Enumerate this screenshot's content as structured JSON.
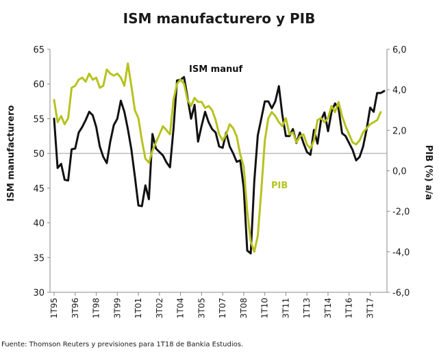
{
  "chart_data": {
    "type": "line",
    "title": "ISM manufacturero y PIB",
    "ylabel": "ISM manufacturero",
    "y2label": "PIB (%) a/a",
    "ylim": [
      30,
      65
    ],
    "y2lim": [
      -6,
      6
    ],
    "yticks": [
      "65",
      "60",
      "55",
      "50",
      "45",
      "40",
      "35",
      "30"
    ],
    "y2ticks": [
      "6,0",
      "4,0",
      "2,0",
      "0,0",
      "-2,0",
      "-4,0",
      "-6,0"
    ],
    "xticks": [
      "1T95",
      "3T96",
      "1T98",
      "3T99",
      "1T01",
      "3T02",
      "1T04",
      "3T05",
      "1T07",
      "3T08",
      "1T10",
      "3T11",
      "1T13",
      "3T14",
      "1T16",
      "3T17"
    ],
    "grid": false,
    "reference_line": 50,
    "series": [
      {
        "name": "ISM manuf",
        "axis": "left",
        "color": "#111111",
        "values": [
          55.0,
          47.9,
          48.5,
          46.2,
          46.1,
          50.6,
          50.7,
          53.0,
          53.8,
          54.8,
          56.0,
          55.5,
          53.8,
          51.0,
          49.5,
          48.6,
          51.7,
          54.1,
          55.0,
          57.6,
          56.0,
          53.5,
          50.6,
          46.7,
          42.5,
          42.4,
          45.4,
          43.4,
          52.8,
          50.7,
          50.2,
          49.7,
          48.7,
          48.0,
          53.5,
          60.5,
          60.6,
          61.0,
          58.0,
          55.0,
          57.0,
          51.7,
          54.0,
          56.0,
          54.5,
          53.5,
          53.0,
          51.0,
          50.8,
          53.0,
          51.0,
          50.0,
          48.8,
          49.0,
          45.0,
          36.0,
          35.6,
          46.0,
          52.6,
          55.0,
          57.5,
          57.5,
          56.5,
          57.5,
          59.7,
          55.5,
          52.5,
          52.5,
          53.5,
          51.5,
          53.0,
          51.5,
          50.2,
          49.8,
          53.4,
          51.4,
          54.8,
          55.9,
          53.2,
          56.0,
          57.2,
          56.5,
          52.9,
          52.5,
          51.5,
          50.5,
          49.0,
          49.5,
          51.0,
          53.5,
          56.6,
          56.0,
          58.7,
          58.7,
          59.0
        ]
      },
      {
        "name": "PIB",
        "axis": "right",
        "color": "#b6c21e",
        "values": [
          3.5,
          2.4,
          2.7,
          2.3,
          2.6,
          4.1,
          4.2,
          4.5,
          4.6,
          4.4,
          4.8,
          4.5,
          4.6,
          4.1,
          4.2,
          5.0,
          4.8,
          4.7,
          4.8,
          4.6,
          4.2,
          5.3,
          4.2,
          3.0,
          2.6,
          1.5,
          0.6,
          0.4,
          1.0,
          1.4,
          1.8,
          2.2,
          2.0,
          1.8,
          3.5,
          4.3,
          4.5,
          4.3,
          3.5,
          3.2,
          3.6,
          3.4,
          3.4,
          3.1,
          3.2,
          3.0,
          2.5,
          1.8,
          1.5,
          1.8,
          2.3,
          2.1,
          1.7,
          0.8,
          0.2,
          -2.0,
          -3.5,
          -4.0,
          -3.2,
          -1.0,
          1.5,
          2.6,
          2.9,
          2.7,
          2.4,
          2.2,
          2.6,
          1.8,
          1.9,
          1.4,
          1.7,
          1.8,
          1.3,
          1.1,
          1.5,
          2.5,
          2.6,
          2.4,
          2.6,
          3.2,
          2.9,
          3.4,
          2.7,
          2.2,
          1.8,
          1.4,
          1.3,
          1.5,
          1.9,
          2.1,
          2.3,
          2.4,
          2.5,
          2.9
        ]
      }
    ]
  },
  "source_note": "Fuente: Thomson Reuters y previsiones para 1T18 de Bankia Estudios."
}
